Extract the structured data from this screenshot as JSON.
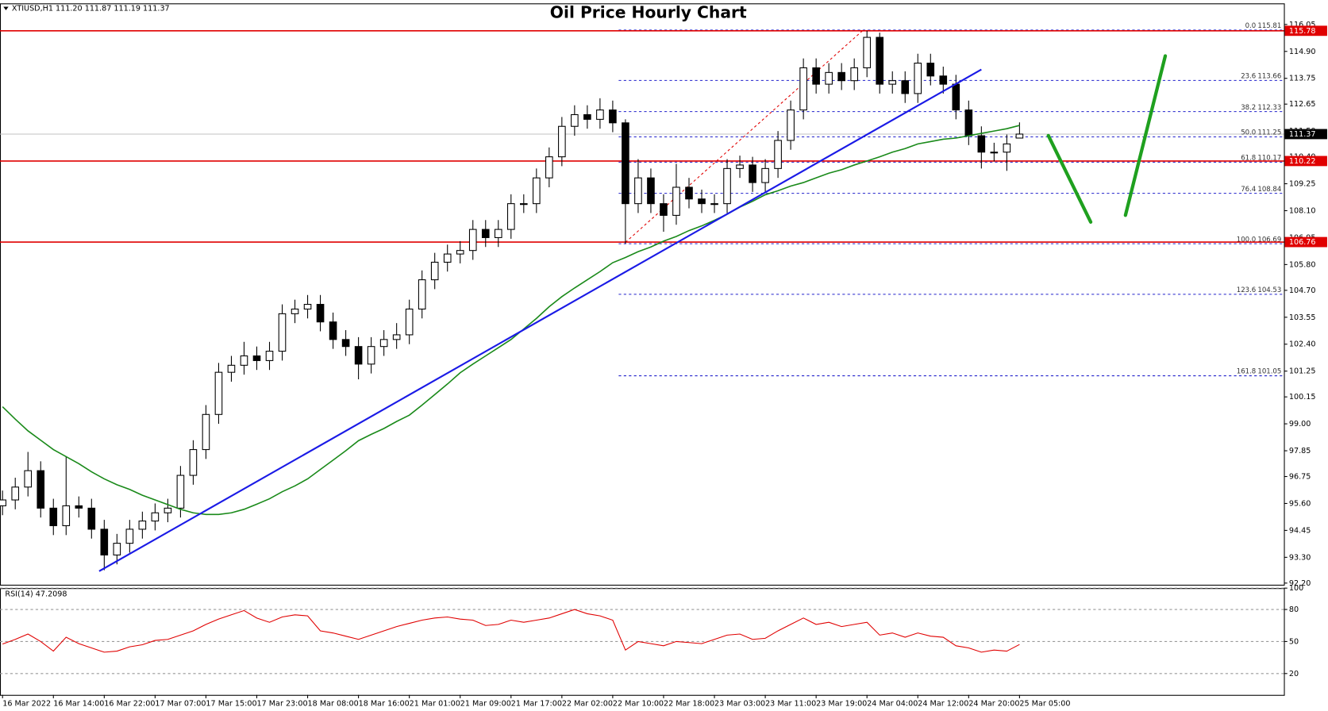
{
  "chart_data": [
    {
      "type": "candlestick",
      "title": "Oil Price Hourly Chart",
      "subtitle": "XTIUSD,H1  111.20 111.87 111.19 111.37",
      "categories": [
        "16 Mar 2022",
        null,
        null,
        null,
        "16 Mar 14:00",
        null,
        null,
        null,
        "16 Mar 22:00",
        null,
        null,
        null,
        "17 Mar 07:00",
        null,
        null,
        null,
        "17 Mar 15:00",
        null,
        null,
        null,
        "17 Mar 23:00",
        null,
        null,
        null,
        "18 Mar 08:00",
        null,
        null,
        null,
        "18 Mar 16:00",
        null,
        null,
        null,
        "21 Mar 01:00",
        null,
        null,
        null,
        "21 Mar 09:00",
        null,
        null,
        null,
        "21 Mar 17:00",
        null,
        null,
        null,
        "22 Mar 02:00",
        null,
        null,
        null,
        "22 Mar 10:00",
        null,
        null,
        null,
        "22 Mar 18:00",
        null,
        null,
        null,
        "23 Mar 03:00",
        null,
        null,
        null,
        "23 Mar 11:00",
        null,
        null,
        null,
        "23 Mar 19:00",
        null,
        null,
        null,
        "24 Mar 04:00",
        null,
        null,
        null,
        "24 Mar 12:00",
        null,
        null,
        null,
        "24 Mar 20:00",
        null,
        null,
        null,
        "25 Mar 05:00"
      ],
      "open": [
        95.5,
        95.75,
        96.3,
        97.0,
        95.4,
        94.65,
        95.5,
        95.4,
        94.5,
        93.4,
        93.9,
        94.5,
        94.85,
        95.2,
        95.4,
        96.8,
        97.9,
        99.4,
        101.2,
        101.5,
        101.9,
        101.7,
        102.1,
        103.7,
        103.9,
        104.1,
        103.35,
        102.6,
        102.3,
        101.55,
        102.3,
        102.6,
        102.8,
        103.9,
        105.15,
        105.9,
        106.25,
        106.4,
        107.3,
        106.95,
        107.3,
        108.4,
        108.4,
        109.5,
        110.4,
        111.7,
        112.2,
        112.0,
        112.4,
        111.85,
        108.4,
        109.5,
        108.4,
        107.9,
        109.1,
        108.6,
        108.4,
        108.4,
        109.9,
        110.05,
        109.3,
        109.9,
        111.1,
        112.4,
        114.2,
        113.5,
        114.0,
        113.65,
        114.2,
        115.5,
        113.5,
        113.65,
        113.1,
        114.4,
        113.85,
        113.5,
        112.4,
        111.3,
        110.6,
        110.6,
        111.2
      ],
      "high": [
        96.15,
        96.7,
        97.8,
        97.4,
        95.8,
        97.6,
        95.9,
        95.8,
        94.9,
        94.3,
        94.9,
        95.25,
        95.6,
        95.8,
        97.2,
        98.3,
        99.8,
        101.6,
        101.9,
        102.5,
        102.3,
        102.5,
        104.1,
        104.3,
        104.5,
        104.5,
        103.75,
        103.0,
        102.7,
        102.7,
        103.0,
        103.3,
        104.3,
        105.55,
        106.3,
        106.65,
        106.8,
        107.7,
        107.7,
        107.7,
        108.8,
        108.8,
        109.9,
        110.8,
        112.1,
        112.6,
        112.6,
        112.9,
        112.8,
        112.0,
        110.3,
        109.9,
        108.8,
        110.1,
        109.5,
        109.0,
        108.8,
        110.3,
        110.45,
        110.4,
        110.3,
        111.5,
        112.8,
        114.6,
        114.6,
        114.4,
        114.4,
        114.6,
        115.78,
        115.7,
        114.05,
        114.05,
        114.8,
        114.8,
        114.25,
        113.9,
        112.8,
        111.7,
        111.0,
        111.35,
        111.87
      ],
      "low": [
        95.1,
        95.35,
        95.9,
        95.0,
        94.25,
        94.25,
        95.0,
        94.1,
        92.75,
        93.0,
        93.5,
        94.1,
        94.45,
        94.8,
        95.0,
        96.4,
        97.5,
        99.0,
        100.8,
        101.1,
        101.3,
        101.3,
        101.7,
        103.3,
        103.5,
        102.95,
        102.2,
        101.9,
        100.9,
        101.15,
        101.9,
        102.2,
        102.4,
        103.5,
        104.75,
        105.5,
        105.85,
        106.0,
        106.55,
        106.55,
        106.9,
        108.0,
        108.0,
        109.1,
        110.0,
        111.3,
        111.6,
        111.6,
        111.45,
        106.7,
        108.0,
        108.0,
        107.2,
        107.5,
        108.2,
        108.0,
        108.0,
        108.0,
        109.5,
        108.9,
        108.9,
        109.5,
        110.7,
        112.0,
        113.1,
        113.1,
        113.25,
        113.25,
        113.8,
        113.1,
        113.1,
        112.7,
        112.7,
        113.45,
        113.1,
        112.0,
        110.9,
        109.9,
        110.2,
        109.8,
        111.19
      ],
      "close": [
        95.75,
        96.3,
        97.0,
        95.4,
        94.65,
        95.5,
        95.4,
        94.5,
        93.4,
        93.9,
        94.5,
        94.85,
        95.2,
        95.4,
        96.8,
        97.9,
        99.4,
        101.2,
        101.5,
        101.9,
        101.7,
        102.1,
        103.7,
        103.9,
        104.1,
        103.35,
        102.6,
        102.3,
        101.55,
        102.3,
        102.6,
        102.8,
        103.9,
        105.15,
        105.9,
        106.25,
        106.4,
        107.3,
        106.95,
        107.3,
        108.4,
        108.4,
        109.5,
        110.4,
        111.7,
        112.2,
        112.0,
        112.4,
        111.85,
        108.4,
        109.5,
        108.4,
        107.9,
        109.1,
        108.6,
        108.4,
        108.4,
        109.9,
        110.05,
        109.3,
        109.9,
        111.1,
        112.4,
        114.2,
        113.5,
        114.0,
        113.65,
        114.2,
        115.5,
        113.5,
        113.65,
        113.1,
        114.4,
        113.85,
        113.5,
        112.4,
        111.3,
        110.6,
        110.6,
        110.95,
        111.37
      ],
      "up_color": "#ffffff",
      "down_color": "#000000",
      "ma": {
        "color": "#1a8a1a",
        "values": [
          99.73,
          99.2,
          98.7,
          98.3,
          97.9,
          97.6,
          97.3,
          96.95,
          96.65,
          96.4,
          96.2,
          95.95,
          95.75,
          95.55,
          95.35,
          95.2,
          95.13,
          95.13,
          95.2,
          95.35,
          95.57,
          95.8,
          96.1,
          96.35,
          96.65,
          97.05,
          97.45,
          97.85,
          98.28,
          98.55,
          98.8,
          99.1,
          99.37,
          99.8,
          100.25,
          100.7,
          101.18,
          101.55,
          101.9,
          102.25,
          102.6,
          103.05,
          103.5,
          104.0,
          104.43,
          104.8,
          105.15,
          105.5,
          105.88,
          106.1,
          106.35,
          106.55,
          106.8,
          107.0,
          107.25,
          107.45,
          107.69,
          107.95,
          108.25,
          108.5,
          108.78,
          108.95,
          109.15,
          109.3,
          109.5,
          109.7,
          109.85,
          110.05,
          110.22,
          110.4,
          110.6,
          110.75,
          110.95,
          111.05,
          111.15,
          111.2,
          111.3,
          111.4,
          111.5,
          111.6,
          111.74
        ]
      },
      "levels": {
        "color": "#e00000",
        "values": [
          115.78,
          110.22,
          106.76
        ]
      },
      "last_price": 111.37,
      "fibonacci": {
        "color": "#2222cc",
        "levels": [
          {
            "label": "0.0",
            "price": 115.81
          },
          {
            "label": "23.6",
            "price": 113.66
          },
          {
            "label": "38.2",
            "price": 112.33
          },
          {
            "label": "50.0",
            "price": 111.25
          },
          {
            "label": "61.8",
            "price": 110.17
          },
          {
            "label": "76.4",
            "price": 108.84
          },
          {
            "label": "100.0",
            "price": 106.69
          },
          {
            "label": "123.6",
            "price": 104.53
          },
          {
            "label": "161.8",
            "price": 101.05
          }
        ]
      },
      "ylim": [
        92.13,
        116.95
      ],
      "yticks": [
        {
          "value": 92.2,
          "label": "92.20"
        },
        {
          "value": 93.3,
          "label": "93.30"
        },
        94.45,
        {
          "value": 95.6,
          "label": "95.60"
        },
        96.75,
        97.85,
        {
          "value": 99,
          "label": "99.00"
        },
        100.15,
        101.25,
        {
          "value": 102.4,
          "label": "102.40"
        },
        103.55,
        {
          "value": 104.7,
          "label": "104.70"
        },
        {
          "value": 105.8,
          "label": "105.80"
        },
        106.95,
        {
          "value": 108.1,
          "label": "108.10"
        },
        109.25,
        {
          "value": 110.4,
          "label": "110.40"
        },
        {
          "value": 111.5,
          "label": "111.50"
        },
        112.65,
        113.75,
        {
          "value": 114.9,
          "label": "114.90"
        },
        116.05
      ]
    },
    {
      "type": "line",
      "title": "RSI(14) 47.2098",
      "color": "#e00000",
      "values": [
        47.6,
        52,
        57,
        50,
        41,
        54,
        48,
        44,
        40,
        41,
        45,
        47,
        51,
        52,
        56,
        60,
        66,
        71,
        75,
        79,
        72,
        68,
        73,
        75,
        74,
        60,
        58,
        55,
        52,
        56,
        60,
        64,
        67,
        70,
        72,
        73,
        71,
        70,
        65,
        66,
        70,
        68,
        70,
        72,
        76,
        80,
        76,
        74,
        70,
        42,
        50,
        48,
        46,
        50,
        49,
        48,
        52,
        56,
        57,
        52,
        53,
        60,
        66,
        72,
        66,
        68,
        64,
        66,
        68,
        56,
        58,
        54,
        58,
        55,
        54,
        46,
        44,
        40,
        42,
        41,
        47.2
      ],
      "ylim": [
        0,
        100
      ],
      "yticks": [
        20,
        50,
        80,
        100
      ]
    }
  ]
}
